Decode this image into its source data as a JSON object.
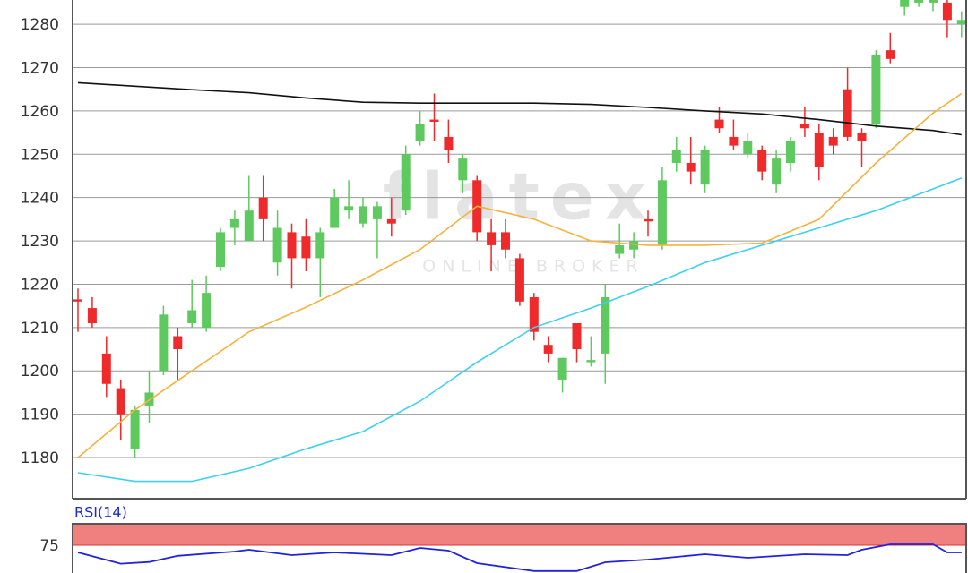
{
  "chart_data": [
    {
      "type": "candlestick",
      "ylim": [
        1170.5,
        1285.6
      ],
      "yticks": [
        1180,
        1190,
        1200,
        1210,
        1220,
        1230,
        1240,
        1250,
        1260,
        1270,
        1280
      ],
      "grid": true,
      "up_color": "#5ec95e",
      "down_color": "#ee2a2a",
      "watermark": {
        "brand": "flatex",
        "tagline": "ONLINE BROKER"
      },
      "open": [
        1216.5,
        1214.5,
        1204,
        1196,
        1182,
        1192,
        1200,
        1208,
        1211,
        1210,
        1224,
        1233,
        1230,
        1240,
        1225,
        1232,
        1231,
        1226,
        1233,
        1237,
        1234,
        1235,
        1235,
        1237,
        1253,
        1258,
        1254,
        1244,
        1244,
        1232,
        1232,
        1226,
        1217,
        1206,
        1198,
        1211,
        1202,
        1204,
        1227,
        1228,
        1235,
        1229,
        1248,
        1248,
        1243,
        1258,
        1254,
        1250,
        1251,
        1243,
        1248,
        1257,
        1255,
        1254,
        1265,
        1255,
        1257,
        1274,
        1284,
        1285,
        1285,
        1285,
        1280
      ],
      "high": [
        1219,
        1217,
        1208,
        1198,
        1192,
        1200,
        1215,
        1210,
        1221,
        1222,
        1233,
        1237,
        1245,
        1245,
        1237,
        1234,
        1235,
        1233,
        1242,
        1244,
        1240,
        1239,
        1240,
        1252,
        1260,
        1264,
        1258,
        1250,
        1245,
        1235,
        1235,
        1227,
        1218,
        1208,
        1203,
        1211,
        1208,
        1220,
        1234,
        1232,
        1237,
        1247,
        1254,
        1254,
        1252,
        1261,
        1258,
        1255,
        1252,
        1251,
        1254,
        1261,
        1257,
        1256,
        1270,
        1256,
        1274,
        1278,
        1290,
        1288,
        1289,
        1287,
        1283
      ],
      "low": [
        1209,
        1210,
        1194,
        1184,
        1180,
        1188,
        1199,
        1198,
        1210,
        1209,
        1223,
        1229,
        1230,
        1230,
        1222,
        1219,
        1223,
        1217,
        1233,
        1235,
        1233,
        1226,
        1231,
        1236,
        1252,
        1253,
        1248,
        1241,
        1230,
        1223,
        1226,
        1215,
        1207,
        1202,
        1195,
        1202,
        1201,
        1197,
        1226,
        1226,
        1231,
        1228,
        1246,
        1243,
        1241,
        1255,
        1251,
        1249,
        1244,
        1241,
        1246,
        1254,
        1244,
        1250,
        1253,
        1247,
        1256,
        1271,
        1282,
        1284,
        1283,
        1277,
        1277
      ],
      "close": [
        1216,
        1211,
        1197,
        1190,
        1191,
        1195,
        1213,
        1205,
        1214,
        1218,
        1232,
        1235,
        1237,
        1235,
        1233,
        1226,
        1226,
        1232,
        1240,
        1238,
        1238,
        1238,
        1234,
        1250,
        1257,
        1257.5,
        1251,
        1249,
        1232,
        1229,
        1228,
        1216,
        1209,
        1204,
        1203,
        1205,
        1202.5,
        1217,
        1229,
        1230,
        1234.5,
        1244,
        1251,
        1246,
        1251,
        1256,
        1252,
        1253,
        1246,
        1249,
        1253,
        1256,
        1247,
        1252,
        1254,
        1253,
        1273,
        1272,
        1286,
        1286,
        1287,
        1281,
        1281
      ],
      "overlays": [
        {
          "color": "#111111",
          "x": [
            0,
            4,
            8,
            12,
            16,
            20,
            24,
            28,
            32,
            36,
            40,
            44,
            48,
            52,
            56,
            60,
            62
          ],
          "values": [
            1266.5,
            1265.7,
            1264.9,
            1264.2,
            1263,
            1262,
            1261.8,
            1261.8,
            1261.8,
            1261.5,
            1260.8,
            1260,
            1259.3,
            1258,
            1256.5,
            1255.5,
            1254.5
          ]
        },
        {
          "color": "#f5b23c",
          "x": [
            0,
            4,
            8,
            12,
            16,
            20,
            24,
            28,
            32,
            36,
            40,
            44,
            48,
            52,
            56,
            60,
            62
          ],
          "values": [
            1180,
            1191,
            1200,
            1209,
            1214.7,
            1221,
            1228,
            1238,
            1235,
            1230,
            1229,
            1229,
            1229.5,
            1235,
            1248,
            1259.5,
            1264
          ]
        },
        {
          "color": "#3fd0f0",
          "x": [
            0,
            4,
            8,
            12,
            16,
            20,
            24,
            28,
            32,
            36,
            40,
            44,
            48,
            52,
            56,
            60,
            62
          ],
          "values": [
            1176.5,
            1174.5,
            1174.5,
            1177.5,
            1182,
            1186,
            1193,
            1202,
            1210,
            1214.5,
            1219.5,
            1225,
            1229,
            1233,
            1237,
            1242,
            1244.5
          ]
        }
      ]
    },
    {
      "type": "line",
      "title": "RSI(14)",
      "ylim": [
        0,
        100
      ],
      "yticks": [
        75
      ],
      "band": [
        75,
        100
      ],
      "band_color": "#f08080",
      "series": [
        {
          "color": "#2222dd",
          "x": [
            0,
            3,
            5,
            7,
            11,
            12,
            15,
            18,
            22,
            24,
            26,
            28,
            32,
            35,
            37,
            40,
            44,
            47,
            51,
            54,
            55,
            57,
            60,
            61,
            62
          ],
          "values": [
            66.7,
            53.5,
            55.5,
            62.7,
            67.7,
            69.8,
            63.5,
            66.7,
            63.5,
            71.9,
            68.8,
            54.2,
            45,
            45,
            55.2,
            58.3,
            64.6,
            60.4,
            64.6,
            63.5,
            69.8,
            76,
            76,
            66.7,
            66.7
          ]
        }
      ]
    }
  ]
}
